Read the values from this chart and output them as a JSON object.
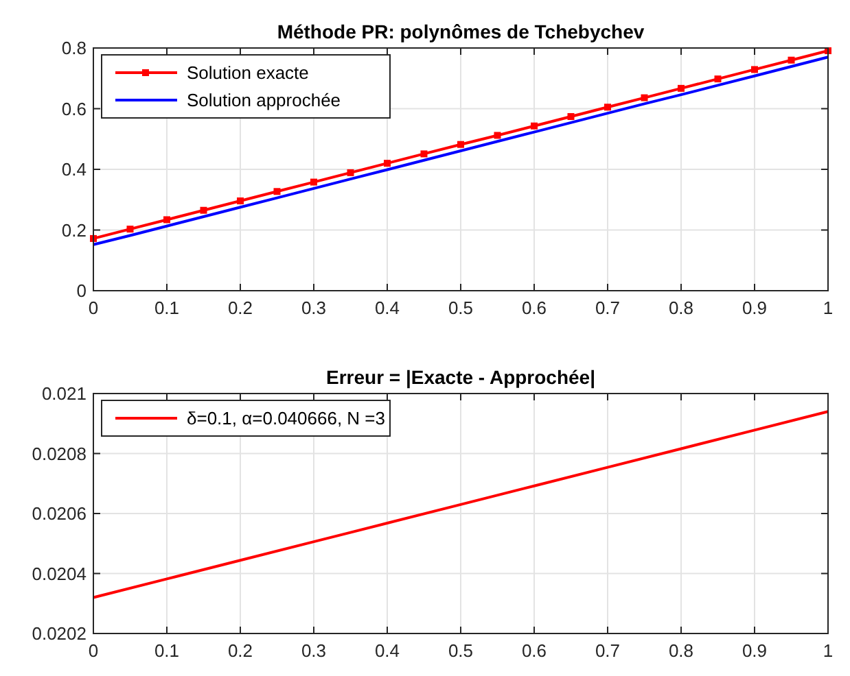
{
  "chart_data": [
    {
      "type": "line",
      "title": "Méthode PR: polynômes de Tchebychev",
      "xlim": [
        0,
        1
      ],
      "xticks": [
        0,
        0.1,
        0.2,
        0.3,
        0.4,
        0.5,
        0.6,
        0.7,
        0.8,
        0.9,
        1
      ],
      "ylim": [
        0,
        0.8
      ],
      "yticks": [
        0,
        0.2,
        0.4,
        0.6,
        0.8
      ],
      "grid": true,
      "legend": "top left",
      "x": [
        0,
        0.05,
        0.1,
        0.15,
        0.2,
        0.25,
        0.3,
        0.35,
        0.4,
        0.45,
        0.5,
        0.55,
        0.6,
        0.65,
        0.7,
        0.75,
        0.8,
        0.85,
        0.9,
        0.95,
        1
      ],
      "series": [
        {
          "name": "Solution exacte",
          "color": "#ff0000",
          "marker": "square",
          "values": [
            0.172,
            0.203,
            0.234,
            0.265,
            0.296,
            0.327,
            0.358,
            0.389,
            0.42,
            0.451,
            0.482,
            0.512,
            0.543,
            0.574,
            0.605,
            0.636,
            0.667,
            0.698,
            0.729,
            0.76,
            0.791
          ]
        },
        {
          "name": "Solution approchée",
          "color": "#0000ff",
          "marker": "none",
          "values": [
            0.152,
            0.182,
            0.213,
            0.244,
            0.275,
            0.306,
            0.337,
            0.368,
            0.399,
            0.43,
            0.461,
            0.492,
            0.523,
            0.554,
            0.585,
            0.616,
            0.646,
            0.677,
            0.708,
            0.739,
            0.77
          ]
        }
      ]
    },
    {
      "type": "line",
      "title": "Erreur = |Exacte - Approchée|",
      "xlim": [
        0,
        1
      ],
      "xticks": [
        0,
        0.1,
        0.2,
        0.3,
        0.4,
        0.5,
        0.6,
        0.7,
        0.8,
        0.9,
        1
      ],
      "ylim": [
        0.0202,
        0.021
      ],
      "yticks": [
        0.0202,
        0.0204,
        0.0206,
        0.0208,
        0.021
      ],
      "grid": true,
      "legend": "top left",
      "x": [
        0,
        0.1,
        0.2,
        0.3,
        0.4,
        0.5,
        0.6,
        0.7,
        0.8,
        0.9,
        1
      ],
      "series": [
        {
          "name": "δ=0.1, α=0.040666, N =3",
          "color": "#ff0000",
          "marker": "none",
          "values": [
            0.02032,
            0.020382,
            0.020444,
            0.020506,
            0.020568,
            0.02063,
            0.020692,
            0.020754,
            0.020816,
            0.020878,
            0.02094
          ]
        }
      ]
    }
  ]
}
